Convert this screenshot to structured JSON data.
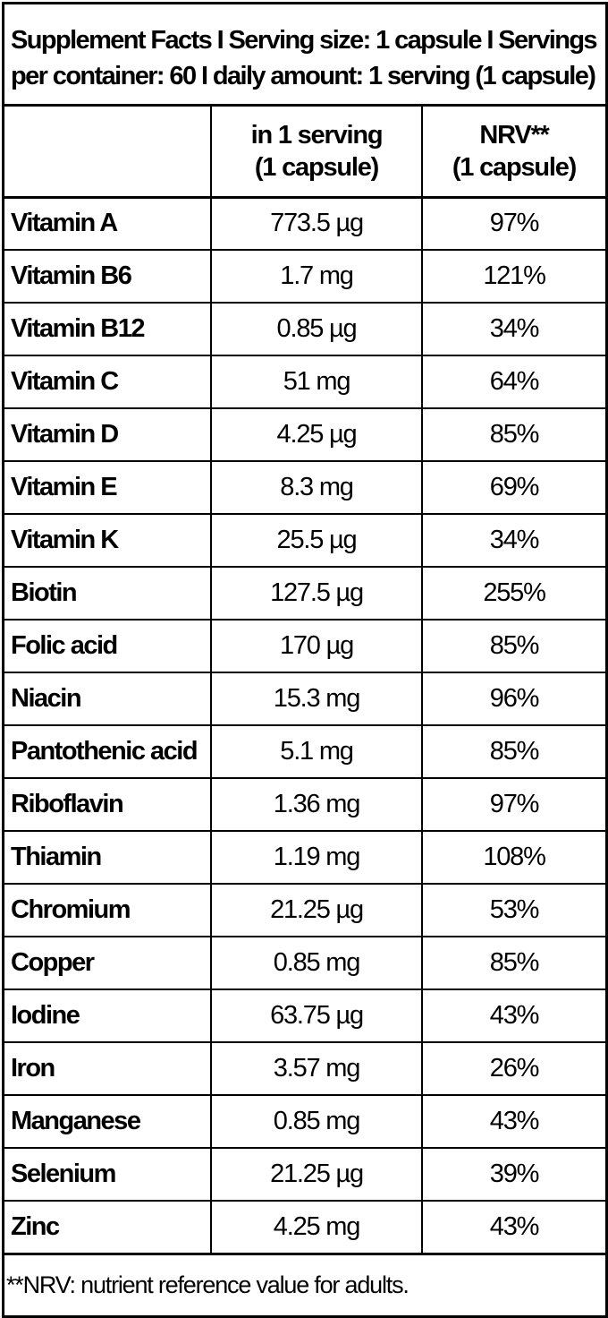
{
  "title": {
    "line1": "Supplement Facts I Serving size: 1 capsule I Servings",
    "line2": "per container: 60 I daily amount: 1 serving (1 capsule)"
  },
  "table": {
    "headers": {
      "ingredient": "",
      "amount_line1": "in 1 serving",
      "amount_line2": "(1 capsule)",
      "nrv_line1": "NRV**",
      "nrv_line2": "(1 capsule)"
    },
    "rows": [
      {
        "name": "Vitamin A",
        "amount": "773.5 µg",
        "nrv": "97%"
      },
      {
        "name": "Vitamin B6",
        "amount": "1.7 mg",
        "nrv": "121%"
      },
      {
        "name": "Vitamin B12",
        "amount": "0.85 µg",
        "nrv": "34%"
      },
      {
        "name": "Vitamin C",
        "amount": "51 mg",
        "nrv": "64%"
      },
      {
        "name": "Vitamin D",
        "amount": "4.25 µg",
        "nrv": "85%"
      },
      {
        "name": "Vitamin E",
        "amount": "8.3 mg",
        "nrv": "69%"
      },
      {
        "name": "Vitamin K",
        "amount": "25.5 µg",
        "nrv": "34%"
      },
      {
        "name": "Biotin",
        "amount": "127.5 µg",
        "nrv": "255%"
      },
      {
        "name": "Folic acid",
        "amount": "170 µg",
        "nrv": "85%"
      },
      {
        "name": "Niacin",
        "amount": "15.3 mg",
        "nrv": "96%"
      },
      {
        "name": "Pantothenic acid",
        "amount": "5.1 mg",
        "nrv": "85%"
      },
      {
        "name": "Riboflavin",
        "amount": "1.36 mg",
        "nrv": "97%"
      },
      {
        "name": "Thiamin",
        "amount": "1.19 mg",
        "nrv": "108%"
      },
      {
        "name": "Chromium",
        "amount": "21.25 µg",
        "nrv": "53%"
      },
      {
        "name": "Copper",
        "amount": "0.85 mg",
        "nrv": "85%"
      },
      {
        "name": "Iodine",
        "amount": "63.75 µg",
        "nrv": "43%"
      },
      {
        "name": "Iron",
        "amount": "3.57 mg",
        "nrv": "26%"
      },
      {
        "name": "Manganese",
        "amount": "0.85 mg",
        "nrv": "43%"
      },
      {
        "name": "Selenium",
        "amount": "21.25 µg",
        "nrv": "39%"
      },
      {
        "name": "Zinc",
        "amount": "4.25 mg",
        "nrv": "43%"
      }
    ]
  },
  "footnote": "**NRV: nutrient reference value for adults.",
  "colors": {
    "text": "#000000",
    "background": "#ffffff",
    "border": "#000000"
  }
}
